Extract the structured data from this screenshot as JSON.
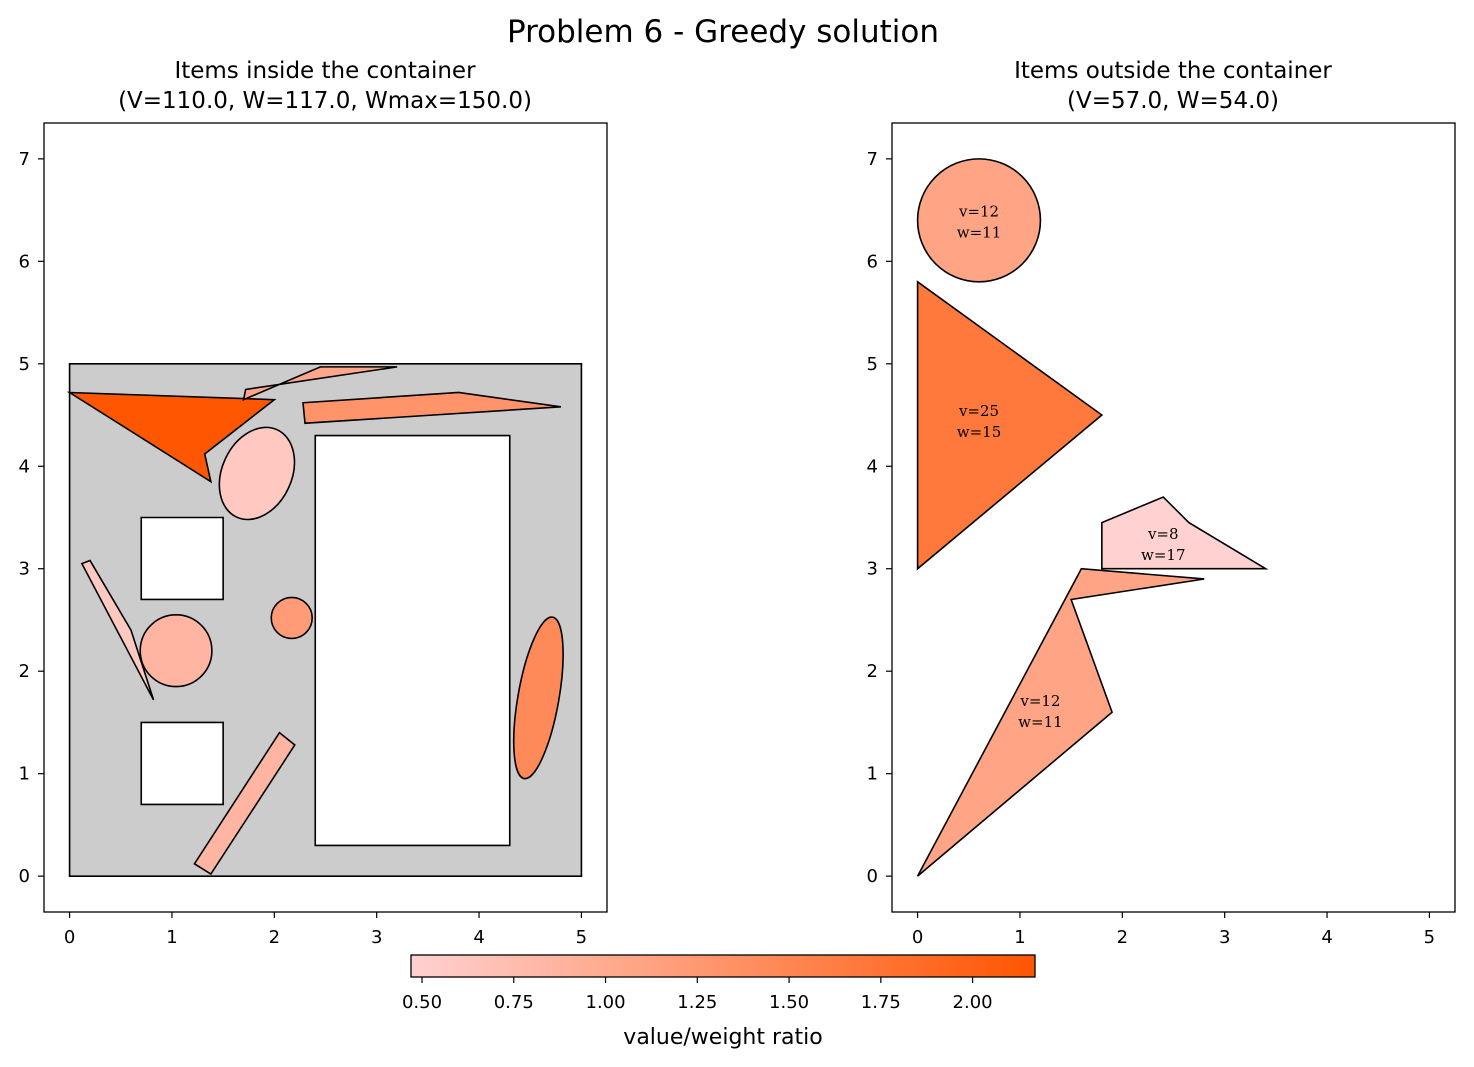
{
  "figure": {
    "title": "Problem 6 - Greedy solution"
  },
  "colors": {
    "container_fill": "#cccccc",
    "hole_fill": "#ffffff",
    "edge": "#000000",
    "cmap_low": "#ffd1d1",
    "cmap_high": "#ff5500"
  },
  "chart_data": [
    {
      "type": "polygon-plot",
      "title_line1": "Items inside the container",
      "title_line2": "(V=110.0, W=117.0, Wmax=150.0)",
      "xlim": [
        -0.25,
        5.25
      ],
      "ylim": [
        -0.35,
        7.35
      ],
      "xticks": [
        0,
        1,
        2,
        3,
        4,
        5
      ],
      "yticks": [
        0,
        1,
        2,
        3,
        4,
        5,
        6,
        7
      ],
      "container": {
        "outline": [
          [
            0,
            0
          ],
          [
            5,
            0
          ],
          [
            5,
            5
          ],
          [
            0,
            5
          ]
        ],
        "holes": [
          [
            [
              0.7,
              0.7
            ],
            [
              1.5,
              0.7
            ],
            [
              1.5,
              1.5
            ],
            [
              0.7,
              1.5
            ]
          ],
          [
            [
              0.7,
              2.7
            ],
            [
              1.5,
              2.7
            ],
            [
              1.5,
              3.5
            ],
            [
              0.7,
              3.5
            ]
          ],
          [
            [
              2.4,
              0.3
            ],
            [
              4.3,
              0.3
            ],
            [
              4.3,
              4.3
            ],
            [
              2.4,
              4.3
            ]
          ]
        ]
      },
      "items": [
        {
          "shape": "polygon",
          "ratio": 2.15,
          "points": [
            [
              0.0,
              4.72
            ],
            [
              2.0,
              4.65
            ],
            [
              1.32,
              4.12
            ],
            [
              1.38,
              3.85
            ]
          ]
        },
        {
          "shape": "polygon",
          "ratio": 1.05,
          "points": [
            [
              1.7,
              4.65
            ],
            [
              2.45,
              4.97
            ],
            [
              3.2,
              4.97
            ],
            [
              1.72,
              4.75
            ]
          ]
        },
        {
          "shape": "polygon",
          "ratio": 1.3,
          "points": [
            [
              2.28,
              4.62
            ],
            [
              3.8,
              4.72
            ],
            [
              4.8,
              4.58
            ],
            [
              2.3,
              4.42
            ]
          ]
        },
        {
          "shape": "ellipse",
          "ratio": 0.6,
          "cx": 1.83,
          "cy": 3.93,
          "rx": 0.34,
          "ry": 0.47,
          "rotation_deg": 25
        },
        {
          "shape": "polygon",
          "ratio": 0.6,
          "points": [
            [
              0.12,
              3.05
            ],
            [
              0.2,
              3.08
            ],
            [
              0.6,
              2.4
            ],
            [
              0.82,
              1.72
            ]
          ]
        },
        {
          "shape": "circle",
          "ratio": 0.85,
          "cx": 1.04,
          "cy": 2.2,
          "r": 0.35
        },
        {
          "shape": "circle",
          "ratio": 1.2,
          "cx": 2.17,
          "cy": 2.52,
          "r": 0.2
        },
        {
          "shape": "polygon",
          "ratio": 0.85,
          "points": [
            [
              1.22,
              0.12
            ],
            [
              2.05,
              1.4
            ],
            [
              2.2,
              1.28
            ],
            [
              1.38,
              0.02
            ]
          ]
        },
        {
          "shape": "ellipse",
          "ratio": 1.45,
          "cx": 4.58,
          "cy": 1.74,
          "rx": 0.2,
          "ry": 0.8,
          "rotation_deg": 10
        }
      ]
    },
    {
      "type": "polygon-plot",
      "title_line1": "Items outside the container",
      "title_line2": "(V=57.0, W=54.0)",
      "xlim": [
        -0.25,
        5.25
      ],
      "ylim": [
        -0.35,
        7.35
      ],
      "xticks": [
        0,
        1,
        2,
        3,
        4,
        5
      ],
      "yticks": [
        0,
        1,
        2,
        3,
        4,
        5,
        6,
        7
      ],
      "items": [
        {
          "shape": "circle",
          "ratio": 1.09,
          "cx": 0.6,
          "cy": 6.4,
          "r": 0.6,
          "label_v": "v=12",
          "label_w": "w=11",
          "label_at": [
            0.6,
            6.4
          ]
        },
        {
          "shape": "polygon",
          "ratio": 1.67,
          "points": [
            [
              0,
              5.8
            ],
            [
              1.8,
              4.5
            ],
            [
              0,
              3.0
            ]
          ],
          "label_v": "v=25",
          "label_w": "w=15",
          "label_at": [
            0.6,
            4.45
          ]
        },
        {
          "shape": "polygon",
          "ratio": 0.47,
          "points": [
            [
              1.8,
              3.45
            ],
            [
              2.4,
              3.7
            ],
            [
              2.65,
              3.45
            ],
            [
              3.4,
              3.0
            ],
            [
              1.8,
              3.0
            ]
          ],
          "label_v": "v=8",
          "label_w": "w=17",
          "label_at": [
            2.4,
            3.25
          ]
        },
        {
          "shape": "polygon",
          "ratio": 1.09,
          "points": [
            [
              0,
              0
            ],
            [
              1.6,
              3.0
            ],
            [
              2.8,
              2.9
            ],
            [
              1.5,
              2.7
            ],
            [
              1.9,
              1.6
            ]
          ],
          "label_v": "v=12",
          "label_w": "w=11",
          "label_at": [
            1.2,
            1.62
          ]
        }
      ]
    }
  ],
  "colorbar": {
    "range": [
      0.47,
      2.17
    ],
    "ticks": [
      "0.50",
      "0.75",
      "1.00",
      "1.25",
      "1.50",
      "1.75",
      "2.00"
    ],
    "tick_values": [
      0.5,
      0.75,
      1.0,
      1.25,
      1.5,
      1.75,
      2.0
    ],
    "label": "value/weight ratio"
  }
}
